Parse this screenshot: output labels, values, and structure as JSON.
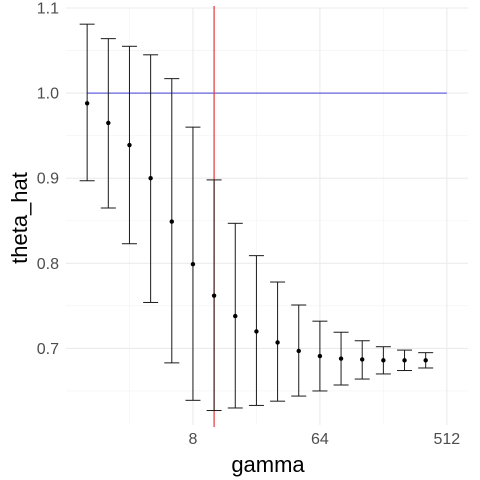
{
  "chart_data": {
    "type": "scatter",
    "xlabel": "gamma",
    "ylabel": "theta_hat",
    "x_scale": "log2",
    "x_ticks": [
      8,
      64,
      512
    ],
    "x_tick_labels": [
      "8",
      "64",
      "512"
    ],
    "xlim": [
      1,
      724
    ],
    "y_ticks": [
      0.7,
      0.8,
      0.9,
      1.0,
      1.1
    ],
    "y_tick_labels": [
      "0.7",
      "0.8",
      "0.9",
      "1.0",
      "1.1"
    ],
    "ylim": [
      0.61,
      1.1
    ],
    "grid": true,
    "points": [
      {
        "x": 1.414,
        "y": 0.988,
        "ymin": 0.897,
        "ymax": 1.081
      },
      {
        "x": 2,
        "y": 0.965,
        "ymin": 0.865,
        "ymax": 1.064
      },
      {
        "x": 2.828,
        "y": 0.939,
        "ymin": 0.823,
        "ymax": 1.055
      },
      {
        "x": 4,
        "y": 0.9,
        "ymin": 0.754,
        "ymax": 1.045
      },
      {
        "x": 5.657,
        "y": 0.849,
        "ymin": 0.683,
        "ymax": 1.017
      },
      {
        "x": 8,
        "y": 0.799,
        "ymin": 0.639,
        "ymax": 0.96
      },
      {
        "x": 11.31,
        "y": 0.762,
        "ymin": 0.627,
        "ymax": 0.898
      },
      {
        "x": 16,
        "y": 0.738,
        "ymin": 0.63,
        "ymax": 0.847
      },
      {
        "x": 22.63,
        "y": 0.72,
        "ymin": 0.633,
        "ymax": 0.809
      },
      {
        "x": 32,
        "y": 0.707,
        "ymin": 0.638,
        "ymax": 0.778
      },
      {
        "x": 45.25,
        "y": 0.697,
        "ymin": 0.644,
        "ymax": 0.751
      },
      {
        "x": 64,
        "y": 0.691,
        "ymin": 0.65,
        "ymax": 0.732
      },
      {
        "x": 90.51,
        "y": 0.688,
        "ymin": 0.657,
        "ymax": 0.719
      },
      {
        "x": 128,
        "y": 0.687,
        "ymin": 0.664,
        "ymax": 0.709
      },
      {
        "x": 181,
        "y": 0.686,
        "ymin": 0.67,
        "ymax": 0.702
      },
      {
        "x": 256,
        "y": 0.686,
        "ymin": 0.674,
        "ymax": 0.698
      },
      {
        "x": 362,
        "y": 0.686,
        "ymin": 0.677,
        "ymax": 0.695
      }
    ],
    "hline": {
      "y": 1.0,
      "x_from": 1.414,
      "x_to": 512,
      "color": "#6464dc"
    },
    "vline": {
      "x": 11.31,
      "color": "#e8333a"
    }
  }
}
